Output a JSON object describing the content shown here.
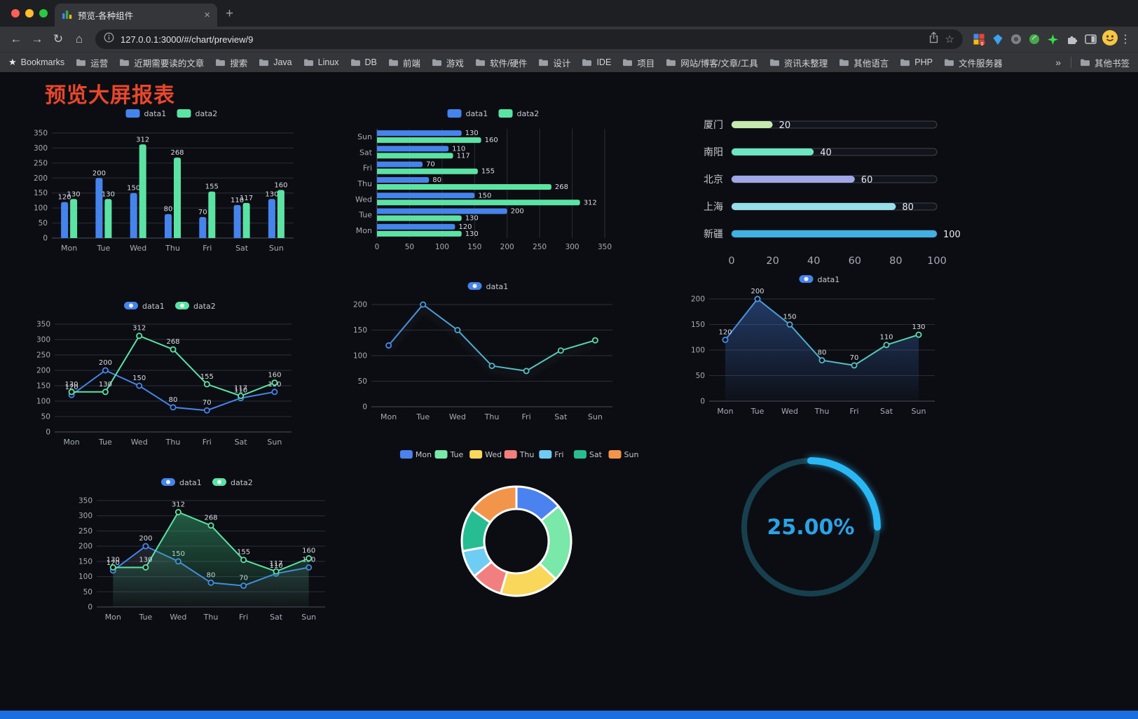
{
  "browser": {
    "traffic_lights": [
      "#ff5f57",
      "#febc2e",
      "#28c840"
    ],
    "tab": {
      "title": "预览-各种组件"
    },
    "address": {
      "url": "127.0.0.1:3000/#/chart/preview/9"
    },
    "icons": {
      "back": "←",
      "forward": "→",
      "reload": "↻",
      "home": "⌂",
      "bookmark_star": "☆",
      "menu": "⋮",
      "new_tab": "+",
      "tab_close": "×",
      "overflow": "»",
      "bookmarks_star": "★"
    },
    "bookmarks_bar": {
      "label": "Bookmarks",
      "folders": [
        "运营",
        "近期需要读的文章",
        "搜索",
        "Java",
        "Linux",
        "DB",
        "前端",
        "游戏",
        "软件/硬件",
        "设计",
        "IDE",
        "项目",
        "网站/博客/文章/工具",
        "资讯未整理",
        "其他语言",
        "PHP",
        "文件服务器"
      ],
      "overflow": "»",
      "other": "其他书签"
    }
  },
  "page": {
    "title": "预览大屏报表",
    "title_color": "#e8472b",
    "background": "#0c0d12",
    "bottom_bar_color": "#1a6fe0"
  },
  "chart_data": [
    {
      "type": "bar",
      "categories": [
        "Mon",
        "Tue",
        "Wed",
        "Thu",
        "Fri",
        "Sat",
        "Sun"
      ],
      "series": [
        {
          "name": "data1",
          "color": "#4584ec",
          "values": [
            120,
            200,
            150,
            80,
            70,
            110,
            130
          ]
        },
        {
          "name": "data2",
          "color": "#5be3a4",
          "values": [
            130,
            130,
            312,
            268,
            155,
            117,
            160
          ]
        }
      ],
      "ylim": [
        0,
        350
      ],
      "ytick_step": 50,
      "value_labels": true,
      "grid": true,
      "legend_position": "top"
    },
    {
      "type": "bar-horizontal",
      "categories": [
        "Mon",
        "Tue",
        "Wed",
        "Thu",
        "Fri",
        "Sat",
        "Sun"
      ],
      "series": [
        {
          "name": "data1",
          "color": "#4584ec",
          "values": [
            120,
            200,
            150,
            80,
            70,
            110,
            130
          ]
        },
        {
          "name": "data2",
          "color": "#5be3a4",
          "values": [
            130,
            130,
            312,
            268,
            155,
            117,
            160
          ]
        }
      ],
      "xlim": [
        0,
        350
      ],
      "xtick_step": 50,
      "value_labels": true,
      "grid": true,
      "legend_position": "top"
    },
    {
      "type": "progress",
      "max": 100,
      "xticks": [
        0,
        20,
        40,
        60,
        80,
        100
      ],
      "items": [
        {
          "label": "厦门",
          "value": 20,
          "color": "#c4ebad"
        },
        {
          "label": "南阳",
          "value": 40,
          "color": "#6be6c1"
        },
        {
          "label": "北京",
          "value": 60,
          "color": "#a0a7e6"
        },
        {
          "label": "上海",
          "value": 80,
          "color": "#96dee8"
        },
        {
          "label": "新疆",
          "value": 100,
          "color": "#3fb1e3"
        }
      ]
    },
    {
      "type": "line",
      "categories": [
        "Mon",
        "Tue",
        "Wed",
        "Thu",
        "Fri",
        "Sat",
        "Sun"
      ],
      "series": [
        {
          "name": "data1",
          "color": "#4584ec",
          "values": [
            120,
            200,
            150,
            80,
            70,
            110,
            130
          ]
        },
        {
          "name": "data2",
          "color": "#5be3a4",
          "values": [
            130,
            130,
            312,
            268,
            155,
            117,
            160
          ]
        }
      ],
      "ylim": [
        0,
        350
      ],
      "ytick_step": 50,
      "value_labels": true,
      "grid": true,
      "legend_position": "top"
    },
    {
      "type": "line",
      "categories": [
        "Mon",
        "Tue",
        "Wed",
        "Thu",
        "Fri",
        "Sat",
        "Sun"
      ],
      "series": [
        {
          "name": "data1",
          "gradient": [
            "#4584ec",
            "#5be3a4"
          ],
          "shadow": true,
          "values": [
            120,
            200,
            150,
            80,
            70,
            110,
            130
          ]
        }
      ],
      "ylim": [
        0,
        200
      ],
      "ytick_step": 50,
      "value_labels": false,
      "grid": true,
      "legend_position": "top"
    },
    {
      "type": "line",
      "categories": [
        "Mon",
        "Tue",
        "Wed",
        "Thu",
        "Fri",
        "Sat",
        "Sun"
      ],
      "series": [
        {
          "name": "data1",
          "gradient": [
            "#4584ec",
            "#5be3a4"
          ],
          "area": true,
          "area_color": "#4584ec",
          "area_opacity": 0.38,
          "values": [
            120,
            200,
            150,
            80,
            70,
            110,
            130
          ]
        }
      ],
      "ylim": [
        0,
        200
      ],
      "ytick_step": 50,
      "value_labels": true,
      "grid": true,
      "legend_position": "top"
    },
    {
      "type": "line",
      "categories": [
        "Mon",
        "Tue",
        "Wed",
        "Thu",
        "Fri",
        "Sat",
        "Sun"
      ],
      "series": [
        {
          "name": "data1",
          "color": "#4584ec",
          "area": true,
          "area_color": "#8a94ad",
          "area_opacity": 0.28,
          "values": [
            120,
            200,
            150,
            80,
            70,
            110,
            130
          ]
        },
        {
          "name": "data2",
          "color": "#5be3a4",
          "area": true,
          "area_color": "#3dbd7f",
          "area_opacity": 0.5,
          "values": [
            130,
            130,
            312,
            268,
            155,
            117,
            160
          ]
        }
      ],
      "ylim": [
        0,
        350
      ],
      "ytick_step": 50,
      "value_labels": true,
      "grid": true,
      "legend_position": "top"
    },
    {
      "type": "pie",
      "donut": true,
      "labels": [
        "Mon",
        "Tue",
        "Wed",
        "Thu",
        "Fri",
        "Sat",
        "Sun"
      ],
      "values": [
        120,
        200,
        150,
        80,
        70,
        110,
        130
      ],
      "colors": [
        "#4a82f0",
        "#79e8a8",
        "#f8d75a",
        "#f27f7f",
        "#6fccf2",
        "#27bd93",
        "#f2954a"
      ],
      "legend_position": "top"
    },
    {
      "type": "gauge",
      "percent": 25,
      "value_label": "25.00%",
      "color": "#2ab8f5",
      "track_color": "#17404e",
      "text_color": "#2aa3e6"
    }
  ]
}
